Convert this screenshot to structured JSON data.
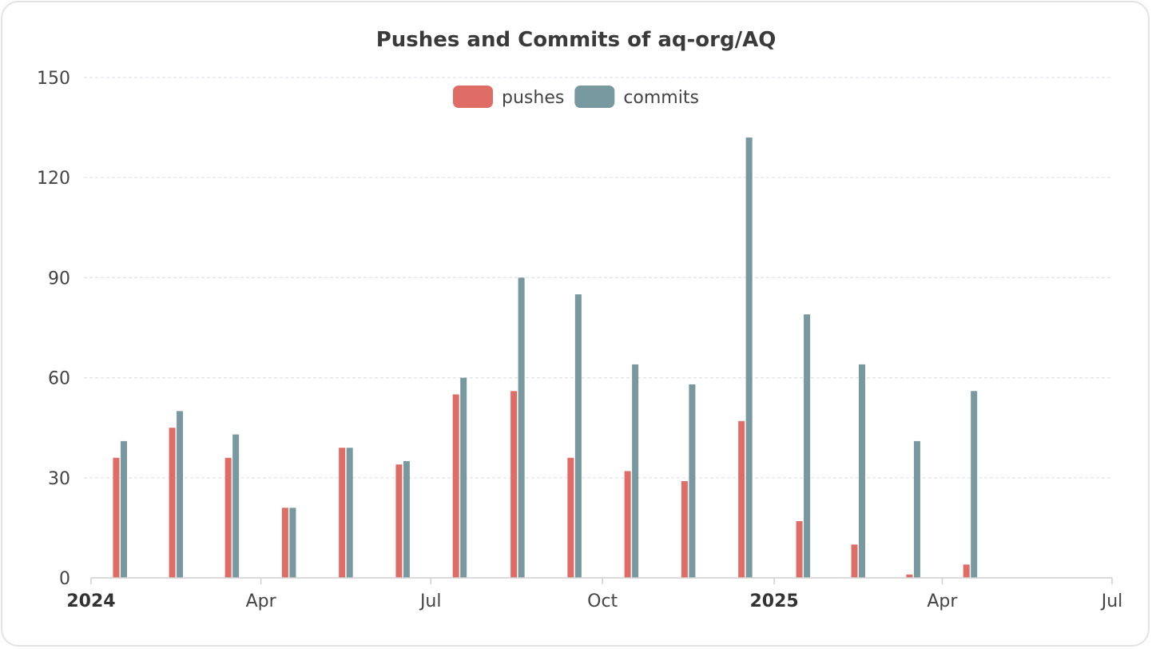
{
  "chart_data": {
    "type": "bar",
    "title": "Pushes and Commits of aq-org/AQ",
    "xlabel": "",
    "ylabel": "",
    "ylim": [
      0,
      150
    ],
    "yticks": [
      0,
      30,
      60,
      90,
      120,
      150
    ],
    "xlim": [
      "2024-01-01",
      "2025-07-01"
    ],
    "xticks": [
      {
        "date": "2024-01-01",
        "label": "2024",
        "bold": true
      },
      {
        "date": "2024-04-01",
        "label": "Apr",
        "bold": false
      },
      {
        "date": "2024-07-01",
        "label": "Jul",
        "bold": false
      },
      {
        "date": "2024-10-01",
        "label": "Oct",
        "bold": false
      },
      {
        "date": "2025-01-01",
        "label": "2025",
        "bold": true
      },
      {
        "date": "2025-04-01",
        "label": "Apr",
        "bold": false
      },
      {
        "date": "2025-07-01",
        "label": "Jul",
        "bold": false
      }
    ],
    "legend": "top-center",
    "grid": true,
    "x": [
      "2024-01",
      "2024-02",
      "2024-03",
      "2024-04",
      "2024-05",
      "2024-06",
      "2024-07",
      "2024-08",
      "2024-09",
      "2024-10",
      "2024-11",
      "2024-12",
      "2025-01",
      "2025-02",
      "2025-03",
      "2025-04",
      "2025-05",
      "2025-06"
    ],
    "series": [
      {
        "name": "pushes",
        "color": "#e06c66",
        "values": [
          36,
          45,
          36,
          21,
          39,
          34,
          55,
          56,
          36,
          32,
          29,
          47,
          17,
          10,
          1,
          4,
          0,
          0
        ]
      },
      {
        "name": "commits",
        "color": "#77999f",
        "values": [
          41,
          50,
          43,
          21,
          39,
          35,
          60,
          90,
          85,
          64,
          58,
          132,
          79,
          64,
          41,
          56,
          0,
          0
        ]
      }
    ]
  }
}
